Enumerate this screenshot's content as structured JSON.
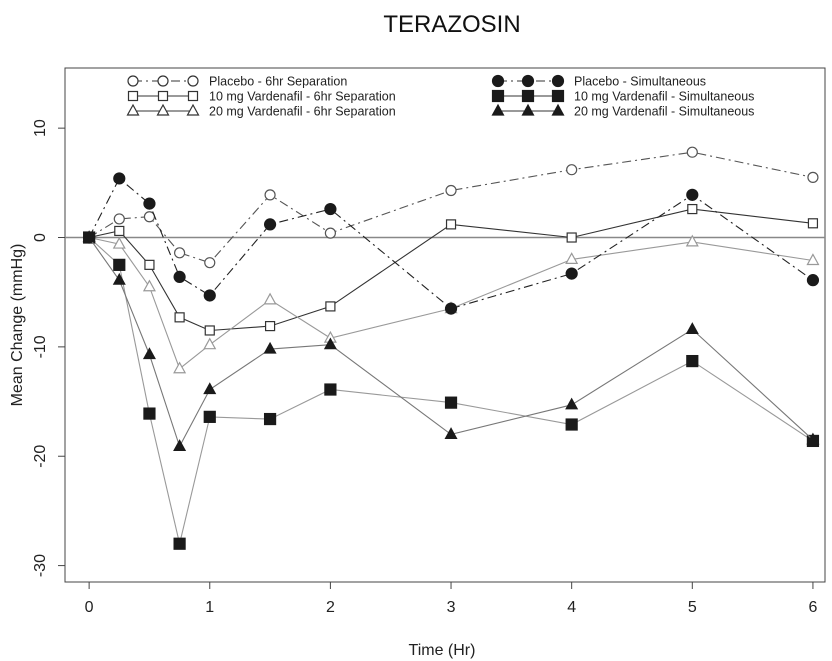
{
  "chart_data": {
    "type": "line",
    "title": "TERAZOSIN",
    "xlabel": "Time (Hr)",
    "ylabel": "Mean Change (mmHg)",
    "xlim": [
      -0.2,
      6.1
    ],
    "ylim": [
      -31.5,
      15.5
    ],
    "x_ticks": [
      0,
      1,
      2,
      3,
      4,
      5,
      6
    ],
    "y_ticks": [
      -30,
      -20,
      -10,
      0,
      10
    ],
    "reference_line": 0,
    "legend_position": "top",
    "series": [
      {
        "name": "Placebo - 6hr Separation",
        "marker": "circle-open",
        "line": "dash-dot",
        "color": "#555555",
        "x": [
          0,
          0.25,
          0.5,
          0.75,
          1,
          1.5,
          2,
          3,
          4,
          5,
          6
        ],
        "y": [
          0,
          1.7,
          1.9,
          -1.4,
          -2.3,
          3.9,
          0.4,
          4.3,
          6.2,
          7.8,
          5.5
        ]
      },
      {
        "name": "10 mg Vardenafil - 6hr Separation",
        "marker": "square-open",
        "line": "solid",
        "color": "#333333",
        "x": [
          0,
          0.25,
          0.5,
          0.75,
          1,
          1.5,
          2,
          3,
          4,
          5,
          6
        ],
        "y": [
          0,
          0.6,
          -2.5,
          -7.3,
          -8.5,
          -8.1,
          -6.3,
          1.2,
          0.0,
          2.6,
          1.3
        ]
      },
      {
        "name": "20 mg Vardenafil - 6hr Separation",
        "marker": "triangle-open",
        "line": "solid",
        "color": "#999999",
        "x": [
          0,
          0.25,
          0.5,
          0.75,
          1,
          1.5,
          2,
          3,
          4,
          5,
          6
        ],
        "y": [
          0,
          -0.6,
          -4.5,
          -12.0,
          -9.8,
          -5.7,
          -9.2,
          -6.5,
          -2.0,
          -0.4,
          -2.1
        ]
      },
      {
        "name": "Placebo - Simultaneous",
        "marker": "circle-filled",
        "line": "dash-dot",
        "color": "#222222",
        "x": [
          0,
          0.25,
          0.5,
          0.75,
          1,
          1.5,
          2,
          3,
          4,
          5,
          6
        ],
        "y": [
          0,
          5.4,
          3.1,
          -3.6,
          -5.3,
          1.2,
          2.6,
          -6.5,
          -3.3,
          3.9,
          -3.9
        ]
      },
      {
        "name": "10 mg Vardenafil - Simultaneous",
        "marker": "square-filled",
        "line": "solid",
        "color": "#999999",
        "x": [
          0,
          0.25,
          0.5,
          0.75,
          1,
          1.5,
          2,
          3,
          4,
          5,
          6
        ],
        "y": [
          0,
          -2.5,
          -16.1,
          -28.0,
          -16.4,
          -16.6,
          -13.9,
          -15.1,
          -17.1,
          -11.3,
          -18.6
        ]
      },
      {
        "name": "20 mg Vardenafil - Simultaneous",
        "marker": "triangle-filled",
        "line": "solid",
        "color": "#777777",
        "x": [
          0,
          0.25,
          0.5,
          0.75,
          1,
          1.5,
          2,
          3,
          4,
          5,
          6
        ],
        "y": [
          0,
          -3.9,
          -10.7,
          -19.1,
          -13.9,
          -10.2,
          -9.8,
          -18.0,
          -15.3,
          -8.4,
          -18.5
        ]
      }
    ]
  }
}
